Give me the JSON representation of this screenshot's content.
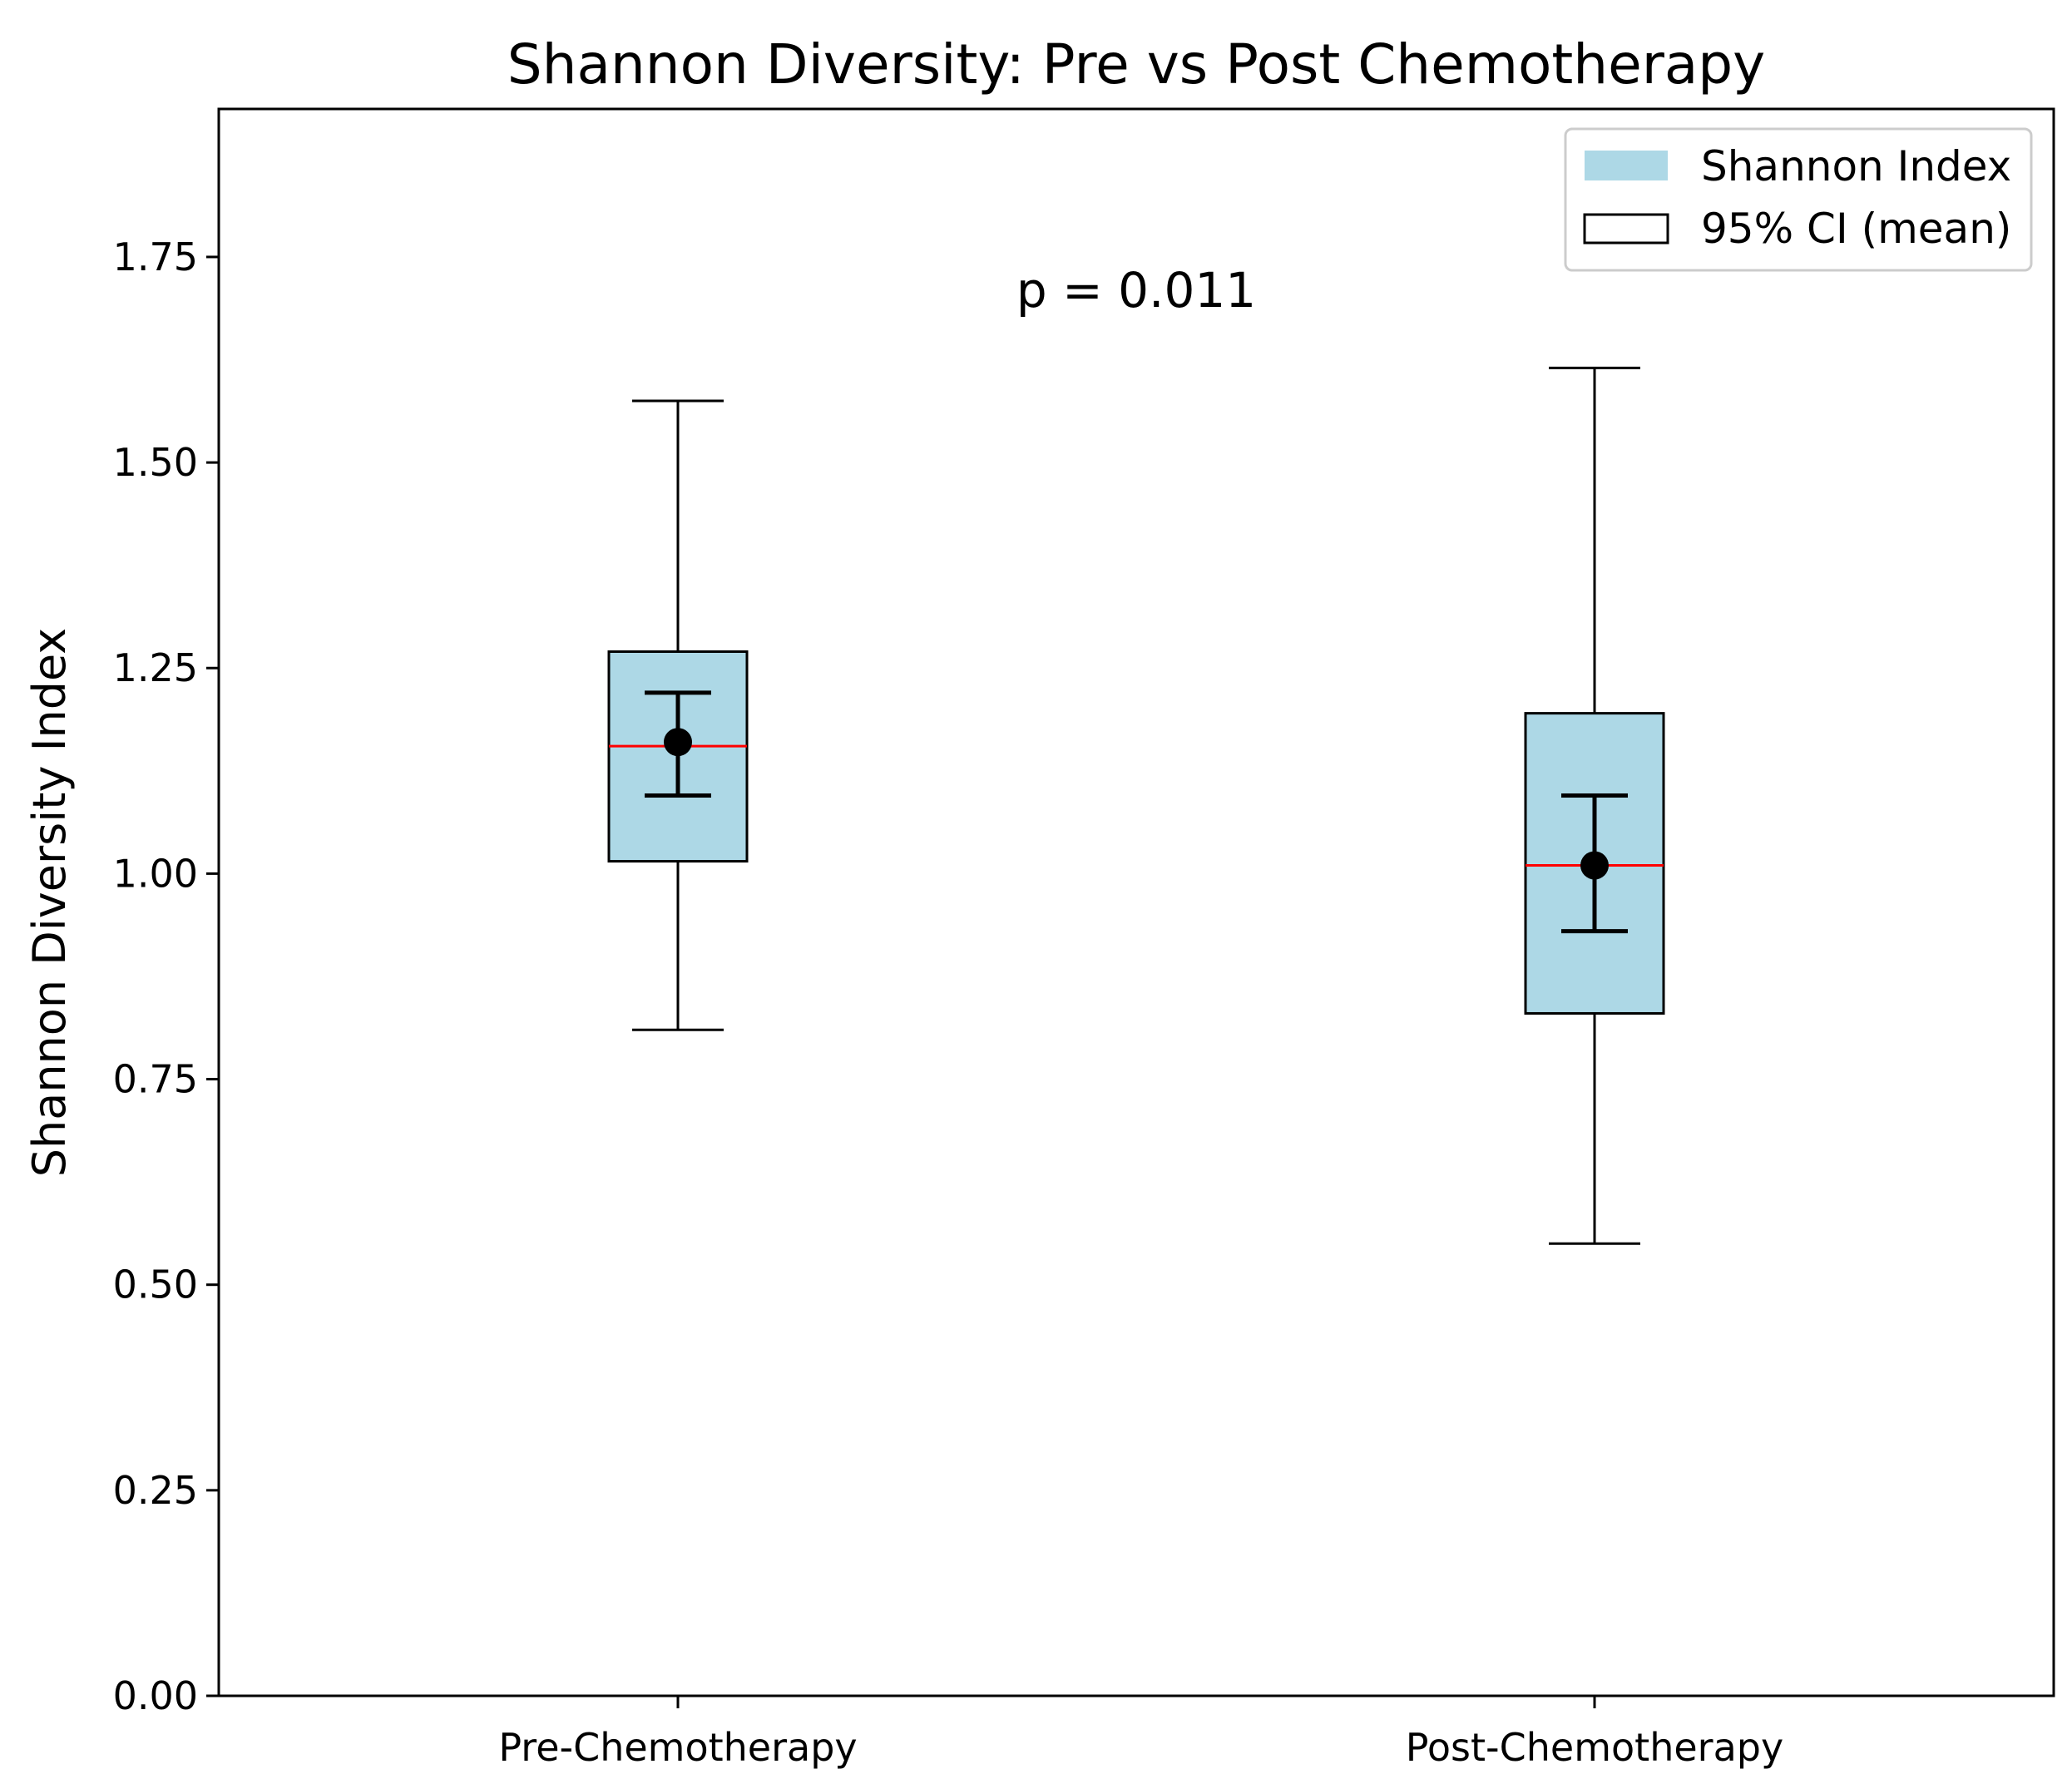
{
  "chart_data": {
    "type": "box",
    "title": "Shannon Diversity: Pre vs Post Chemotherapy",
    "xlabel": "",
    "ylabel": "Shannon Diversity Index",
    "ylim": [
      0,
      1.93
    ],
    "yticks": [
      0.0,
      0.25,
      0.5,
      0.75,
      1.0,
      1.25,
      1.5,
      1.75
    ],
    "ytick_labels": [
      "0.00",
      "0.25",
      "0.50",
      "0.75",
      "1.00",
      "1.25",
      "1.50",
      "1.75"
    ],
    "categories": [
      "Pre-Chemotherapy",
      "Post-Chemotherapy"
    ],
    "boxes": [
      {
        "name": "Pre-Chemotherapy",
        "whisker_low": 0.81,
        "q1": 1.015,
        "median": 1.155,
        "q3": 1.27,
        "whisker_high": 1.575,
        "mean": 1.16,
        "ci_low": 1.095,
        "ci_high": 1.22
      },
      {
        "name": "Post-Chemotherapy",
        "whisker_low": 0.55,
        "q1": 0.83,
        "median": 1.01,
        "q3": 1.195,
        "whisker_high": 1.615,
        "mean": 1.01,
        "ci_low": 0.93,
        "ci_high": 1.095
      }
    ],
    "annotation": "p = 0.011",
    "legend": {
      "position": "top-right",
      "entries": [
        {
          "label": "Shannon Index",
          "style": "filled"
        },
        {
          "label": "95% CI (mean)",
          "style": "outline"
        }
      ]
    },
    "colors": {
      "box_fill": "#add8e6",
      "median": "#ff0000",
      "line": "#000000",
      "legend_border": "#cccccc"
    }
  }
}
